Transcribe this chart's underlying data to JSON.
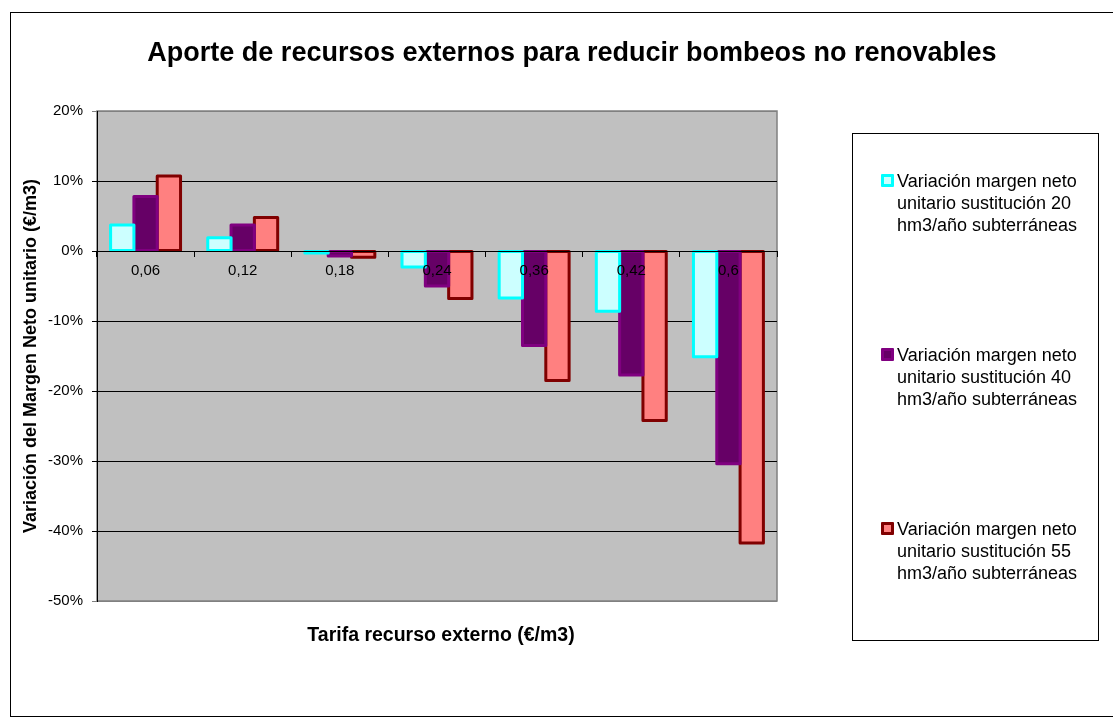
{
  "chart_data": {
    "type": "bar",
    "title": "Aporte de recursos externos para reducir bombeos no renovables",
    "xlabel": "Tarifa recurso externo (€/m3)",
    "ylabel": "Variación del Margen Neto unitario (€/m3)",
    "categories": [
      "0,06",
      "0,12",
      "0,18",
      "0,24",
      "0,36",
      "0,42",
      "0,6"
    ],
    "series": [
      {
        "name": "Variación margen neto unitario sustitución 20 hm3/año subterráneas",
        "color": "#ccffff",
        "values": [
          3.7,
          1.9,
          -0.3,
          -2.3,
          -6.7,
          -8.6,
          -15.1
        ]
      },
      {
        "name": "Variación margen neto unitario sustitución 40 hm3/año subterráneas",
        "color": "#660066",
        "values": [
          7.8,
          3.7,
          -0.7,
          -5.0,
          -13.5,
          -17.7,
          -30.4
        ]
      },
      {
        "name": "Variación margen neto unitario sustitución 55 hm3/año subterráneas",
        "color": "#ff8080",
        "values": [
          10.7,
          4.8,
          -0.9,
          -6.8,
          -18.5,
          -24.2,
          -41.7
        ]
      }
    ],
    "ylim": [
      -50,
      20
    ],
    "yticks": [
      {
        "value": -50,
        "label": "-50%"
      },
      {
        "value": -40,
        "label": "-40%"
      },
      {
        "value": -30,
        "label": "-30%"
      },
      {
        "value": -20,
        "label": "-20%"
      },
      {
        "value": -10,
        "label": "-10%"
      },
      {
        "value": 0,
        "label": "0%"
      },
      {
        "value": 10,
        "label": "10%"
      },
      {
        "value": 20,
        "label": "20%"
      }
    ],
    "grid": "y",
    "legend": "right"
  }
}
